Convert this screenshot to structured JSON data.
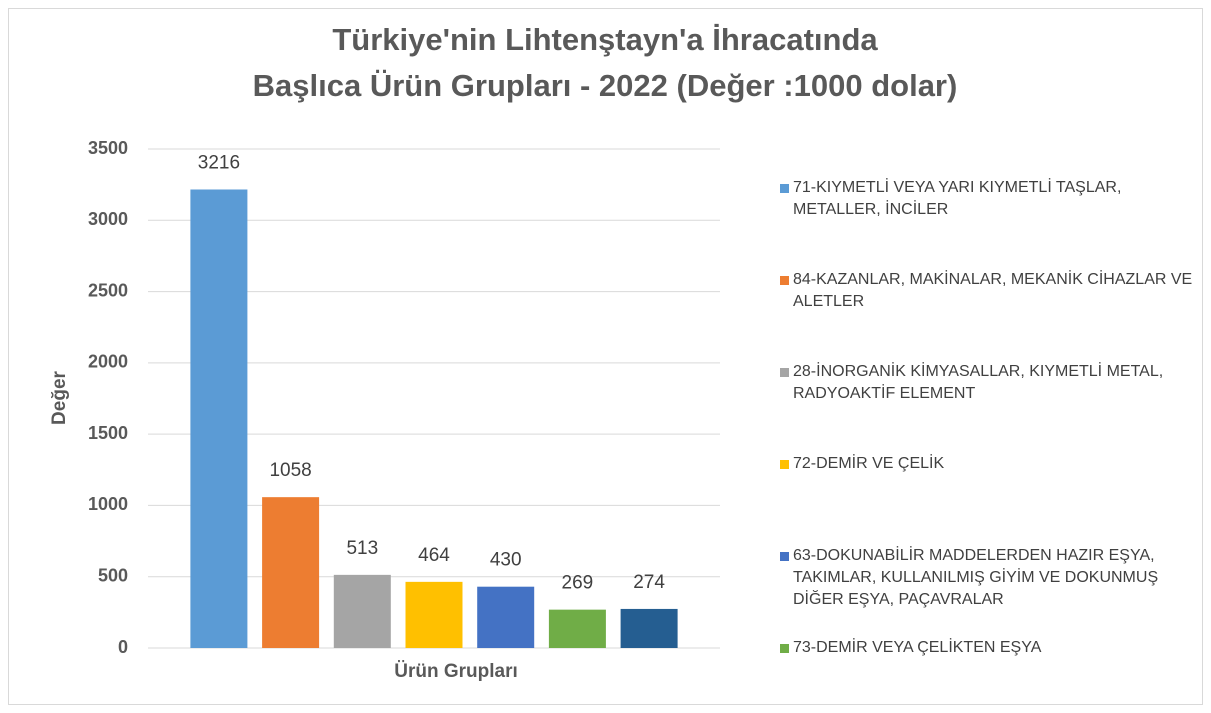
{
  "chart_data": {
    "type": "bar",
    "title": [
      "Türkiye'nin Lihtenştayn'a İhracatında",
      "Başlıca Ürün Grupları - 2022  (Değer :1000 dolar)"
    ],
    "xlabel": "Ürün Grupları",
    "ylabel": "Değer",
    "categories": [
      "Ürün Grupları"
    ],
    "series": [
      {
        "name": "71-KIYMETLİ VEYA YARI KIYMETLİ TAŞLAR, METALLER, İNCİLER",
        "color": "#5b9bd5",
        "values": [
          3216
        ]
      },
      {
        "name": "84-KAZANLAR, MAKİNALAR, MEKANİK CİHAZLAR VE ALETLER",
        "color": "#ed7d31",
        "values": [
          1058
        ]
      },
      {
        "name": "28-İNORGANİK KİMYASALLAR, KIYMETLİ METAL, RADYOAKTİF ELEMENT",
        "color": "#a5a5a5",
        "values": [
          513
        ]
      },
      {
        "name": "72-DEMİR VE ÇELİK",
        "color": "#ffc000",
        "values": [
          464
        ]
      },
      {
        "name": "63-DOKUNABİLİR MADDELERDEN HAZIR EŞYA, TAKIMLAR, KULLANILMIŞ GİYİM VE DOKUNMUŞ DİĞER EŞYA, PAÇAVRALAR",
        "color": "#4472c4",
        "values": [
          430
        ]
      },
      {
        "name": "73-DEMİR VEYA ÇELİKTEN EŞYA",
        "color": "#70ad47",
        "values": [
          269
        ]
      },
      {
        "color": "#255e91",
        "values": [
          274
        ]
      }
    ],
    "ylim": [
      0,
      3500
    ],
    "yticks": [
      0,
      500,
      1000,
      1500,
      2000,
      2500,
      3000,
      3500
    ],
    "grid": true,
    "legend": "right"
  }
}
